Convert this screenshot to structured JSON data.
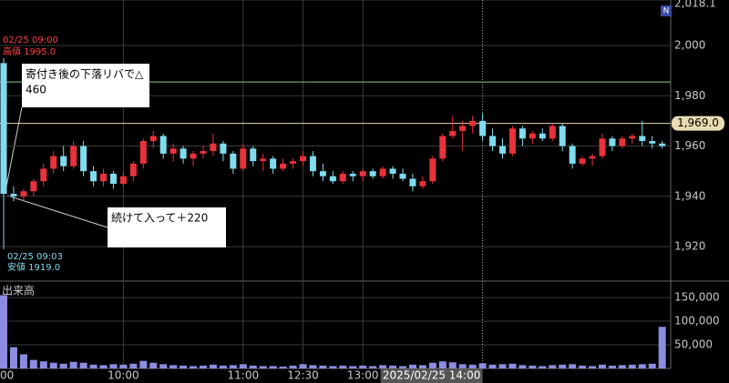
{
  "chart_data": {
    "type": "candlestick",
    "categories": [
      "00",
      null,
      null,
      null,
      null,
      null,
      null,
      null,
      null,
      null,
      null,
      null,
      "10:00",
      null,
      null,
      null,
      null,
      null,
      null,
      null,
      null,
      null,
      null,
      null,
      "11:00",
      null,
      null,
      null,
      null,
      null,
      "12:30",
      null,
      null,
      null,
      null,
      null,
      "13:00",
      null,
      null,
      null,
      null,
      null,
      null,
      null,
      null,
      null,
      null,
      null,
      "2025/02/25 14:00",
      null,
      null,
      null,
      null,
      null,
      null,
      null,
      null,
      null,
      null,
      null,
      null,
      null,
      null,
      null,
      null,
      null,
      null
    ],
    "open": [
      1993,
      1941,
      1940,
      1942,
      1946,
      1951,
      1956,
      1952,
      1960,
      1950,
      1946,
      1949,
      1945,
      1948,
      1953,
      1962,
      1964,
      1957,
      1959,
      1955,
      1957,
      1958,
      1961,
      1957,
      1951,
      1959,
      1954,
      1955,
      1951,
      1953,
      1954,
      1956,
      1950,
      1948,
      1946,
      1949,
      1948,
      1950,
      1948,
      1951,
      1949,
      1947,
      1944,
      1946,
      1955,
      1964,
      1966,
      1968,
      1970,
      1964,
      1960,
      1957,
      1967,
      1963,
      1965,
      1963,
      1968,
      1960,
      1953,
      1955,
      1956,
      1963,
      1960,
      1963,
      1964,
      1962,
      1961
    ],
    "high": [
      1995,
      1944,
      1943,
      1947,
      1953,
      1958,
      1960,
      1962,
      1962,
      1952,
      1951,
      1950,
      1950,
      1954,
      1963,
      1966,
      1965,
      1961,
      1960,
      1958,
      1960,
      1965,
      1962,
      1958,
      1961,
      1960,
      1957,
      1956,
      1955,
      1955,
      1958,
      1958,
      1953,
      1950,
      1950,
      1950,
      1951,
      1951,
      1952,
      1952,
      1951,
      1949,
      1948,
      1956,
      1965,
      1972,
      1970,
      1972,
      1973,
      1967,
      1963,
      1968,
      1968,
      1966,
      1967,
      1969,
      1969,
      1961,
      1956,
      1957,
      1965,
      1964,
      1964,
      1965,
      1970,
      1964,
      1962
    ],
    "low": [
      1919,
      1938,
      1938,
      1940,
      1944,
      1949,
      1950,
      1951,
      1948,
      1944,
      1944,
      1943,
      1944,
      1946,
      1951,
      1959,
      1955,
      1954,
      1953,
      1952,
      1955,
      1956,
      1954,
      1949,
      1950,
      1952,
      1950,
      1949,
      1950,
      1951,
      1952,
      1948,
      1946,
      1945,
      1945,
      1946,
      1946,
      1947,
      1947,
      1947,
      1946,
      1942,
      1943,
      1945,
      1954,
      1963,
      1958,
      1965,
      1962,
      1958,
      1955,
      1956,
      1960,
      1961,
      1962,
      1962,
      1958,
      1951,
      1952,
      1952,
      1955,
      1958,
      1959,
      1961,
      1960,
      1959,
      1959
    ],
    "close": [
      1941,
      1940,
      1942,
      1946,
      1951,
      1956,
      1952,
      1960,
      1950,
      1946,
      1949,
      1945,
      1948,
      1953,
      1962,
      1964,
      1957,
      1959,
      1955,
      1957,
      1958,
      1961,
      1957,
      1951,
      1959,
      1954,
      1955,
      1951,
      1953,
      1954,
      1956,
      1950,
      1948,
      1946,
      1949,
      1948,
      1950,
      1948,
      1951,
      1949,
      1947,
      1944,
      1946,
      1955,
      1964,
      1966,
      1968,
      1970,
      1964,
      1960,
      1957,
      1967,
      1963,
      1965,
      1963,
      1968,
      1960,
      1953,
      1955,
      1956,
      1963,
      1960,
      1963,
      1964,
      1962,
      1961,
      1960
    ],
    "volume": [
      155000,
      45000,
      30000,
      18000,
      15000,
      12000,
      10000,
      14000,
      12000,
      8000,
      7000,
      9000,
      8000,
      10000,
      16000,
      12000,
      9000,
      7000,
      6000,
      5000,
      6000,
      8000,
      6000,
      7000,
      9000,
      6000,
      5000,
      5000,
      4000,
      6000,
      9000,
      7000,
      6000,
      5000,
      6000,
      5000,
      6000,
      5000,
      7000,
      6000,
      5000,
      8000,
      7000,
      12000,
      15000,
      13000,
      9000,
      8000,
      11000,
      8000,
      9000,
      10000,
      7000,
      6000,
      5000,
      7000,
      8000,
      9000,
      6000,
      5000,
      8000,
      6000,
      7000,
      8000,
      9000,
      10000,
      88000
    ],
    "up_color": "#e8323c",
    "down_color": "#7fdcef",
    "volume_color": "#8c8ce0",
    "ylim": [
      1907,
      2018.1
    ],
    "yticks": [
      {
        "value": 1920,
        "label": "1,920"
      },
      {
        "value": 1940,
        "label": "1,940"
      },
      {
        "value": 1960,
        "label": "1,960"
      },
      {
        "value": 1980,
        "label": "1,980"
      },
      {
        "value": 2000,
        "label": "2,000"
      },
      {
        "value": 2018.1,
        "label": "2,018.1"
      }
    ],
    "volume_title": "出来高",
    "volume_ylim": [
      0,
      179000
    ],
    "volume_yticks": [
      {
        "value": 50000,
        "label": "50,000"
      },
      {
        "value": 100000,
        "label": "100,000"
      },
      {
        "value": 150000,
        "label": "150,000"
      }
    ],
    "hlines": [
      {
        "value": 1985.5,
        "color": "#7fd07f"
      },
      {
        "value": 1969,
        "label": "1,969.0",
        "color": "#e8dcb0"
      }
    ],
    "high_note": {
      "time": "02/25 09:00",
      "label": "高値 1995.0"
    },
    "low_note": {
      "time": "02/25 09:03",
      "label": "安値 1919.0"
    },
    "notes": [
      {
        "lines": [
          "寄付き後の下落リバで△",
          "460"
        ]
      },
      {
        "lines": [
          "続けて入って＋220"
        ]
      }
    ],
    "grid": true
  }
}
